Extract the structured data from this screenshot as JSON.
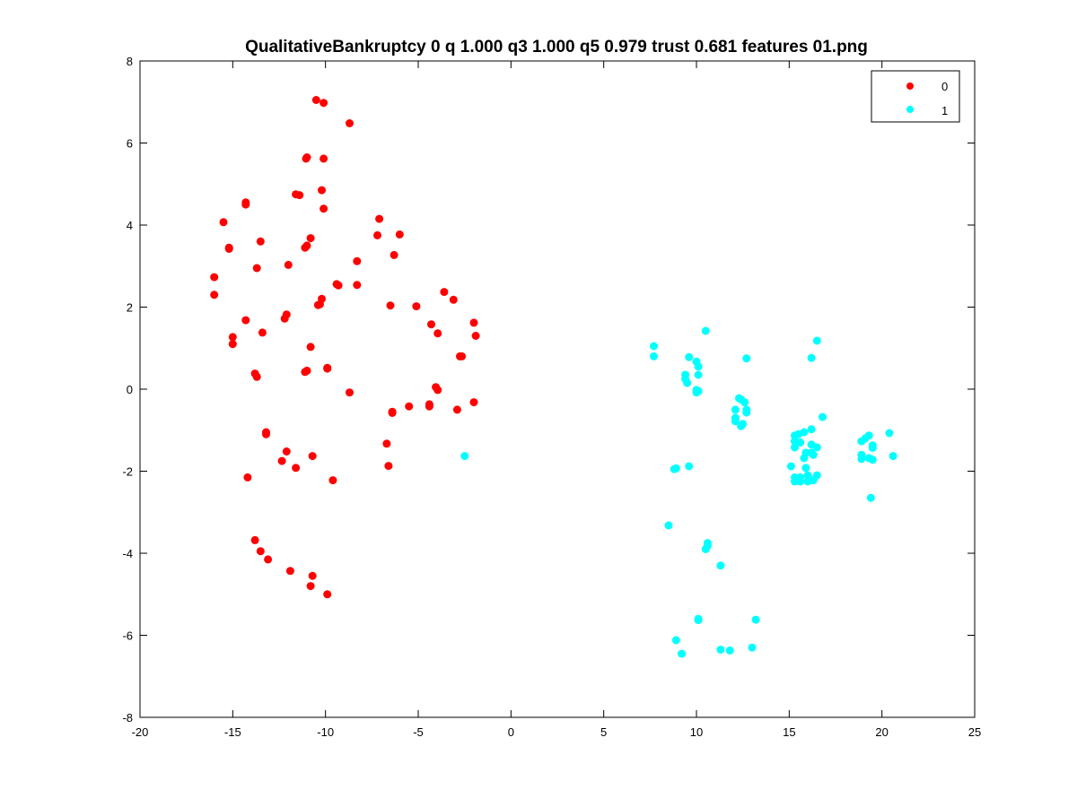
{
  "chart_data": {
    "type": "scatter",
    "title": "QualitativeBankruptcy 0 q 1.000 q3 1.000 q5 0.979 trust 0.681 features 01.png",
    "xlabel": "",
    "ylabel": "",
    "xlim": [
      -20,
      25
    ],
    "ylim": [
      -8,
      8
    ],
    "xticks": [
      -20,
      -15,
      -10,
      -5,
      0,
      5,
      10,
      15,
      20,
      25
    ],
    "yticks": [
      -8,
      -6,
      -4,
      -2,
      0,
      2,
      4,
      6,
      8
    ],
    "grid": false,
    "legend_position": "top-right",
    "series": [
      {
        "name": "0",
        "color": "#ff0000",
        "points": [
          [
            -10.5,
            7.05
          ],
          [
            -10.1,
            6.98
          ],
          [
            -8.7,
            6.48
          ],
          [
            -11.0,
            5.65
          ],
          [
            -11.05,
            5.62
          ],
          [
            -10.1,
            5.62
          ],
          [
            -11.6,
            4.75
          ],
          [
            -11.4,
            4.73
          ],
          [
            -10.2,
            4.85
          ],
          [
            -10.1,
            4.4
          ],
          [
            -14.3,
            4.55
          ],
          [
            -14.3,
            4.5
          ],
          [
            -15.5,
            4.07
          ],
          [
            -7.1,
            4.15
          ],
          [
            -6.0,
            3.77
          ],
          [
            -7.2,
            3.75
          ],
          [
            -15.2,
            3.45
          ],
          [
            -15.2,
            3.42
          ],
          [
            -13.5,
            3.6
          ],
          [
            -10.8,
            3.68
          ],
          [
            -11.0,
            3.5
          ],
          [
            -11.1,
            3.45
          ],
          [
            -6.3,
            3.27
          ],
          [
            -8.3,
            3.12
          ],
          [
            -12.0,
            3.03
          ],
          [
            -13.7,
            2.95
          ],
          [
            -16.0,
            2.73
          ],
          [
            -16.0,
            2.3
          ],
          [
            -9.4,
            2.56
          ],
          [
            -9.3,
            2.53
          ],
          [
            -8.3,
            2.54
          ],
          [
            -3.6,
            2.37
          ],
          [
            -3.1,
            2.18
          ],
          [
            -10.2,
            2.2
          ],
          [
            -10.3,
            2.07
          ],
          [
            -10.4,
            2.05
          ],
          [
            -6.5,
            2.04
          ],
          [
            -5.1,
            2.02
          ],
          [
            -12.1,
            1.82
          ],
          [
            -12.2,
            1.72
          ],
          [
            -14.3,
            1.68
          ],
          [
            -4.3,
            1.58
          ],
          [
            -2.0,
            1.62
          ],
          [
            -1.9,
            1.3
          ],
          [
            -13.4,
            1.38
          ],
          [
            -3.95,
            1.36
          ],
          [
            -15.0,
            1.27
          ],
          [
            -15.0,
            1.1
          ],
          [
            -10.8,
            1.03
          ],
          [
            -2.75,
            0.8
          ],
          [
            -2.65,
            0.8
          ],
          [
            -9.9,
            0.52
          ],
          [
            -9.9,
            0.5
          ],
          [
            -11.0,
            0.45
          ],
          [
            -11.1,
            0.42
          ],
          [
            -13.8,
            0.38
          ],
          [
            -13.7,
            0.3
          ],
          [
            -4.05,
            0.05
          ],
          [
            -3.95,
            -0.02
          ],
          [
            -8.7,
            -0.08
          ],
          [
            -2.0,
            -0.32
          ],
          [
            -4.4,
            -0.37
          ],
          [
            -4.4,
            -0.42
          ],
          [
            -5.5,
            -0.42
          ],
          [
            -2.9,
            -0.5
          ],
          [
            -6.4,
            -0.55
          ],
          [
            -6.4,
            -0.58
          ],
          [
            -13.2,
            -1.05
          ],
          [
            -13.2,
            -1.1
          ],
          [
            -6.7,
            -1.33
          ],
          [
            -12.1,
            -1.52
          ],
          [
            -10.7,
            -1.63
          ],
          [
            -12.35,
            -1.75
          ],
          [
            -6.6,
            -1.87
          ],
          [
            -11.6,
            -1.92
          ],
          [
            -14.2,
            -2.15
          ],
          [
            -9.6,
            -2.22
          ],
          [
            -13.8,
            -3.68
          ],
          [
            -13.5,
            -3.95
          ],
          [
            -13.1,
            -4.15
          ],
          [
            -11.9,
            -4.43
          ],
          [
            -10.7,
            -4.55
          ],
          [
            -10.8,
            -4.8
          ],
          [
            -9.9,
            -5.0
          ]
        ]
      },
      {
        "name": "1",
        "color": "#00ffff",
        "points": [
          [
            -2.5,
            -1.63
          ],
          [
            7.7,
            1.05
          ],
          [
            7.7,
            0.8
          ],
          [
            10.5,
            1.42
          ],
          [
            9.6,
            0.78
          ],
          [
            10.0,
            0.67
          ],
          [
            10.1,
            0.55
          ],
          [
            9.4,
            0.35
          ],
          [
            10.1,
            0.35
          ],
          [
            9.4,
            0.25
          ],
          [
            9.5,
            0.15
          ],
          [
            10.0,
            -0.02
          ],
          [
            10.1,
            -0.05
          ],
          [
            10.0,
            -0.08
          ],
          [
            12.7,
            0.75
          ],
          [
            12.3,
            -0.22
          ],
          [
            12.4,
            -0.25
          ],
          [
            12.6,
            -0.32
          ],
          [
            12.1,
            -0.5
          ],
          [
            12.7,
            -0.5
          ],
          [
            12.7,
            -0.57
          ],
          [
            12.1,
            -0.7
          ],
          [
            12.1,
            -0.78
          ],
          [
            12.5,
            -0.85
          ],
          [
            12.4,
            -0.9
          ],
          [
            16.5,
            1.18
          ],
          [
            16.2,
            0.76
          ],
          [
            16.8,
            -0.68
          ],
          [
            15.3,
            -1.13
          ],
          [
            15.5,
            -1.1
          ],
          [
            15.8,
            -1.05
          ],
          [
            16.2,
            -0.98
          ],
          [
            15.3,
            -1.27
          ],
          [
            15.6,
            -1.3
          ],
          [
            16.2,
            -1.35
          ],
          [
            15.3,
            -1.42
          ],
          [
            16.5,
            -1.42
          ],
          [
            15.9,
            -1.55
          ],
          [
            16.2,
            -1.55
          ],
          [
            16.3,
            -1.6
          ],
          [
            15.8,
            -1.68
          ],
          [
            15.1,
            -1.88
          ],
          [
            15.9,
            -1.92
          ],
          [
            16.0,
            -2.1
          ],
          [
            16.5,
            -2.1
          ],
          [
            15.3,
            -2.15
          ],
          [
            15.6,
            -2.15
          ],
          [
            15.3,
            -2.25
          ],
          [
            15.6,
            -2.25
          ],
          [
            16.0,
            -2.25
          ],
          [
            16.3,
            -2.22
          ],
          [
            19.3,
            -1.13
          ],
          [
            19.1,
            -1.2
          ],
          [
            18.9,
            -1.27
          ],
          [
            19.5,
            -1.37
          ],
          [
            19.5,
            -1.43
          ],
          [
            18.9,
            -1.6
          ],
          [
            18.9,
            -1.7
          ],
          [
            19.3,
            -1.68
          ],
          [
            19.5,
            -1.72
          ],
          [
            20.4,
            -1.07
          ],
          [
            20.6,
            -1.63
          ],
          [
            19.4,
            -2.65
          ],
          [
            8.9,
            -1.93
          ],
          [
            8.8,
            -1.95
          ],
          [
            9.6,
            -1.88
          ],
          [
            8.5,
            -3.32
          ],
          [
            10.6,
            -3.75
          ],
          [
            10.6,
            -3.82
          ],
          [
            10.5,
            -3.9
          ],
          [
            11.3,
            -4.3
          ],
          [
            10.1,
            -5.6
          ],
          [
            10.1,
            -5.63
          ],
          [
            13.2,
            -5.62
          ],
          [
            8.9,
            -6.12
          ],
          [
            9.2,
            -6.45
          ],
          [
            11.3,
            -6.35
          ],
          [
            11.8,
            -6.37
          ],
          [
            13.0,
            -6.3
          ]
        ]
      }
    ]
  }
}
